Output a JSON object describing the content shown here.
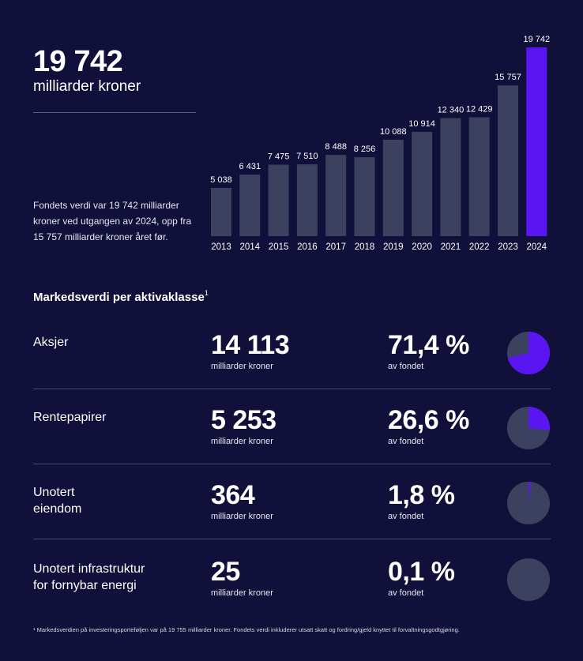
{
  "headline": {
    "value": "19 742",
    "unit": "milliarder kroner"
  },
  "description": "Fondets verdi var 19 742 milliarder kroner ved utgangen av 2024, opp fra 15 757 milliarder kroner året før.",
  "section_title": "Markedsverdi per aktivaklasse",
  "section_footnote_mark": "1",
  "asset_classes": [
    {
      "name": "Aksjer",
      "value": "14 113",
      "value_unit": "milliarder kroner",
      "share": "71,4 %",
      "share_unit": "av fondet",
      "fraction": 0.714
    },
    {
      "name": "Rentepapirer",
      "value": "5 253",
      "value_unit": "milliarder kroner",
      "share": "26,6 %",
      "share_unit": "av fondet",
      "fraction": 0.266
    },
    {
      "name": "Unotert\neiendom",
      "value": "364",
      "value_unit": "milliarder kroner",
      "share": "1,8 %",
      "share_unit": "av fondet",
      "fraction": 0.018
    },
    {
      "name": "Unotert infrastruktur\nfor fornybar energi",
      "value": "25",
      "value_unit": "milliarder kroner",
      "share": "0,1 %",
      "share_unit": "av fondet",
      "fraction": 0.001
    }
  ],
  "footnote": "¹ Markedsverdien på investeringsporteføljen var på 19 755 milliarder kroner. Fondets verdi inkluderer utsatt skatt og fordring/gjeld knyttet til forvaltningsgodtgjøring.",
  "colors": {
    "background": "#10103a",
    "bar": "#3d4160",
    "bar_highlight": "#5a16f2",
    "pie_rest": "#3d4160",
    "pie_share": "#5a16f2"
  },
  "chart_data": {
    "type": "bar",
    "categories": [
      "2013",
      "2014",
      "2015",
      "2016",
      "2017",
      "2018",
      "2019",
      "2020",
      "2021",
      "2022",
      "2023",
      "2024"
    ],
    "values": [
      5038,
      6431,
      7475,
      7510,
      8488,
      8256,
      10088,
      10914,
      12340,
      12429,
      15757,
      19742
    ],
    "labels": [
      "5 038",
      "6 431",
      "7 475",
      "7 510",
      "8 488",
      "8 256",
      "10 088",
      "10 914",
      "12 340",
      "12 429",
      "15 757",
      "19 742"
    ],
    "highlight": "2024",
    "ylim": [
      0,
      19742
    ],
    "grid": false
  }
}
